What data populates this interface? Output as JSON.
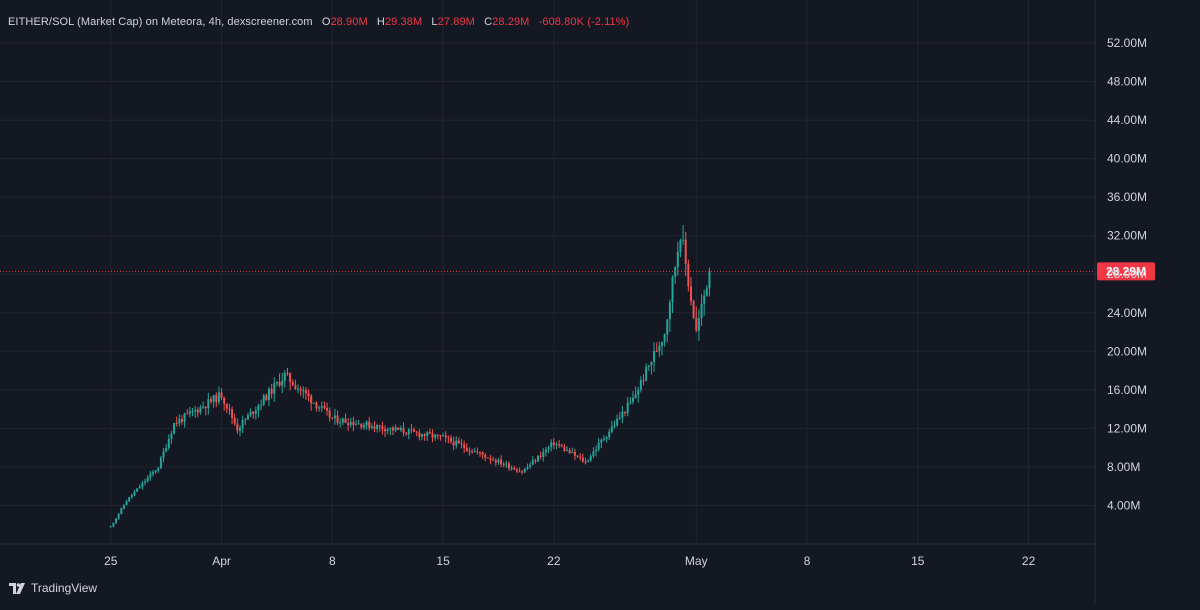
{
  "legend": {
    "symbol": "EITHER/SOL (Market Cap) on Meteora, 4h, dexscreener.com",
    "open_key": "O",
    "open": "28.90M",
    "high_key": "H",
    "high": "29.38M",
    "low_key": "L",
    "low": "27.89M",
    "close_key": "C",
    "close": "28.29M",
    "change": "-608.80K (-2.11%)"
  },
  "branding": "TradingView",
  "colors": {
    "background": "#141823",
    "grid": "#22252f",
    "up": "#26a69a",
    "down": "#ef5350",
    "last_price": "#f23645",
    "text": "#d1d4dc"
  },
  "chart_data": {
    "type": "candlestick",
    "pair": "EITHER/SOL (Market Cap)",
    "venue": "Meteora",
    "timeframe": "4h",
    "source": "dexscreener.com",
    "y_unit": "market cap (USD)",
    "ylim": [
      0,
      55000000
    ],
    "y_ticks": [
      4000000,
      8000000,
      12000000,
      16000000,
      20000000,
      24000000,
      28000000,
      32000000,
      36000000,
      40000000,
      44000000,
      48000000,
      52000000
    ],
    "y_tick_labels": [
      "4.00M",
      "8.00M",
      "12.00M",
      "16.00M",
      "20.00M",
      "24.00M",
      "28.00M",
      "32.00M",
      "36.00M",
      "40.00M",
      "44.00M",
      "48.00M",
      "52.00M"
    ],
    "x_start": "2024-03-25",
    "x_ticks": [
      "2024-03-25",
      "2024-04-01",
      "2024-04-08",
      "2024-04-15",
      "2024-04-22",
      "2024-05-01",
      "2024-05-08",
      "2024-05-15",
      "2024-05-22"
    ],
    "x_tick_labels": [
      "25",
      "Apr",
      "8",
      "15",
      "22",
      "May",
      "8",
      "15",
      "22"
    ],
    "xlim": [
      "2024-03-18T00:00",
      "2024-06-01T20:00"
    ],
    "grid": true,
    "last_price": 28290000,
    "last_price_label": "28.29M",
    "key_levels": [
      {
        "date": "2024-03-25",
        "market_cap": 1800000
      },
      {
        "date": "2024-03-26",
        "market_cap": 4500000
      },
      {
        "date": "2024-03-28",
        "market_cap": 8000000
      },
      {
        "date": "2024-03-29",
        "market_cap": 12500000
      },
      {
        "date": "2024-04-01",
        "market_cap": 15500000
      },
      {
        "date": "2024-04-02",
        "market_cap": 12000000
      },
      {
        "date": "2024-04-05",
        "market_cap": 17500000
      },
      {
        "date": "2024-04-08",
        "market_cap": 13000000
      },
      {
        "date": "2024-04-15",
        "market_cap": 11000000
      },
      {
        "date": "2024-04-20",
        "market_cap": 7500000
      },
      {
        "date": "2024-04-22",
        "market_cap": 10500000
      },
      {
        "date": "2024-04-24",
        "market_cap": 8500000
      },
      {
        "date": "2024-04-27",
        "market_cap": 15000000
      },
      {
        "date": "2024-04-29",
        "market_cap": 22000000
      },
      {
        "date": "2024-04-30",
        "market_cap": 32500000
      },
      {
        "date": "2024-05-01",
        "market_cap": 22000000
      },
      {
        "date": "2024-05-01T20:00",
        "market_cap": 28290000
      }
    ]
  }
}
